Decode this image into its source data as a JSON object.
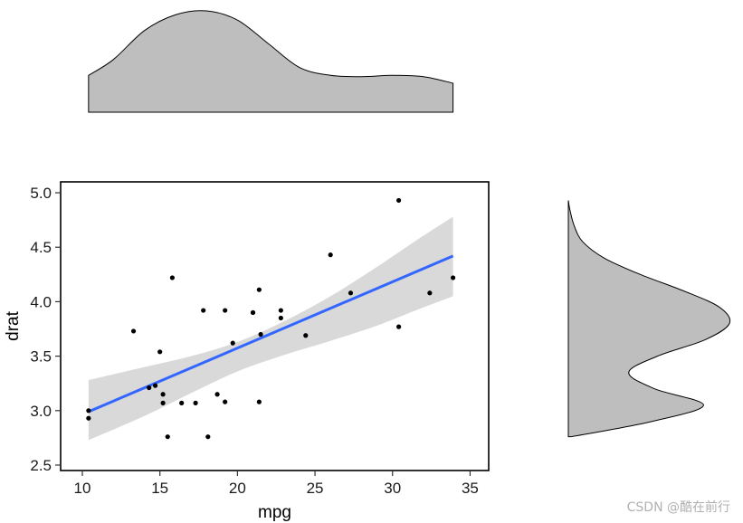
{
  "chart_data": {
    "type": "scatter",
    "xlabel": "mpg",
    "ylabel": "drat",
    "xlim": [
      8.6,
      36.2
    ],
    "ylim": [
      2.45,
      5.1
    ],
    "xticks": [
      10,
      15,
      20,
      25,
      30,
      35
    ],
    "yticks": [
      2.5,
      3.0,
      3.5,
      4.0,
      4.5,
      5.0
    ],
    "ytick_labels": [
      "2.5",
      "3.0",
      "3.5",
      "4.0",
      "4.5",
      "5.0"
    ],
    "points": [
      {
        "x": 21.0,
        "y": 3.9
      },
      {
        "x": 21.0,
        "y": 3.9
      },
      {
        "x": 22.8,
        "y": 3.85
      },
      {
        "x": 21.4,
        "y": 3.08
      },
      {
        "x": 18.7,
        "y": 3.15
      },
      {
        "x": 18.1,
        "y": 2.76
      },
      {
        "x": 14.3,
        "y": 3.21
      },
      {
        "x": 24.4,
        "y": 3.69
      },
      {
        "x": 22.8,
        "y": 3.92
      },
      {
        "x": 19.2,
        "y": 3.92
      },
      {
        "x": 17.8,
        "y": 3.92
      },
      {
        "x": 16.4,
        "y": 3.07
      },
      {
        "x": 17.3,
        "y": 3.07
      },
      {
        "x": 15.2,
        "y": 3.07
      },
      {
        "x": 10.4,
        "y": 2.93
      },
      {
        "x": 10.4,
        "y": 3.0
      },
      {
        "x": 14.7,
        "y": 3.23
      },
      {
        "x": 32.4,
        "y": 4.08
      },
      {
        "x": 30.4,
        "y": 4.93
      },
      {
        "x": 33.9,
        "y": 4.22
      },
      {
        "x": 21.5,
        "y": 3.7
      },
      {
        "x": 15.5,
        "y": 2.76
      },
      {
        "x": 15.2,
        "y": 3.15
      },
      {
        "x": 13.3,
        "y": 3.73
      },
      {
        "x": 19.2,
        "y": 3.08
      },
      {
        "x": 27.3,
        "y": 4.08
      },
      {
        "x": 26.0,
        "y": 4.43
      },
      {
        "x": 30.4,
        "y": 3.77
      },
      {
        "x": 15.8,
        "y": 4.22
      },
      {
        "x": 19.7,
        "y": 3.62
      },
      {
        "x": 15.0,
        "y": 3.54
      },
      {
        "x": 21.4,
        "y": 4.11
      }
    ],
    "fit": {
      "x": [
        10.4,
        33.9
      ],
      "y": [
        2.99,
        4.42
      ]
    },
    "ci_band": {
      "x": [
        10.4,
        14.0,
        17.0,
        20.0,
        23.0,
        26.0,
        29.0,
        31.5,
        33.9
      ],
      "upper": [
        3.28,
        3.4,
        3.5,
        3.63,
        3.82,
        4.05,
        4.32,
        4.56,
        4.78
      ],
      "lower": [
        2.73,
        2.95,
        3.16,
        3.36,
        3.51,
        3.64,
        3.78,
        3.92,
        4.05
      ]
    },
    "x_density": {
      "x": [
        10.4,
        12,
        14,
        16,
        18,
        20,
        22,
        24,
        26,
        28,
        30,
        32,
        33.9
      ],
      "d": [
        0.028,
        0.04,
        0.062,
        0.074,
        0.077,
        0.07,
        0.052,
        0.034,
        0.028,
        0.027,
        0.028,
        0.027,
        0.022
      ]
    },
    "y_density": {
      "y": [
        2.76,
        2.9,
        3.05,
        3.2,
        3.35,
        3.5,
        3.65,
        3.8,
        3.95,
        4.1,
        4.25,
        4.4,
        4.55,
        4.7,
        4.85,
        4.93
      ],
      "d": [
        0.02,
        0.58,
        0.94,
        0.6,
        0.42,
        0.62,
        0.95,
        1.12,
        1.05,
        0.8,
        0.5,
        0.25,
        0.1,
        0.04,
        0.01,
        0.0
      ]
    },
    "colors": {
      "points": "#000000",
      "line": "#3366ff",
      "band": "#d9d9d9",
      "density": "#bebebe"
    }
  },
  "watermark": "CSDN @酷在前行"
}
